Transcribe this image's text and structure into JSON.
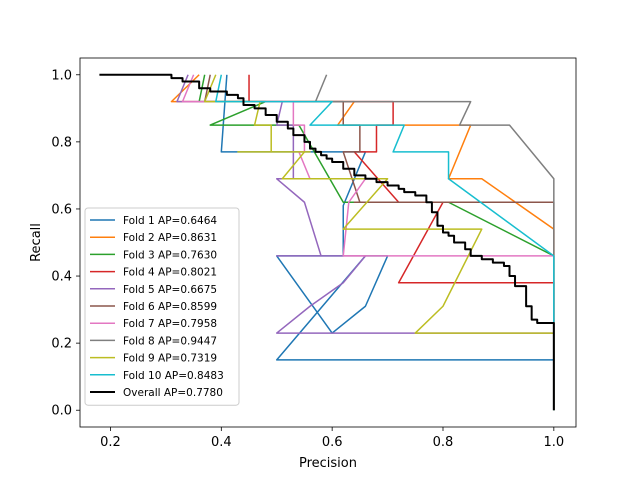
{
  "chart_data": {
    "type": "line",
    "title": "",
    "xlabel": "Precision",
    "ylabel": "Recall",
    "xlim": [
      0.145,
      1.04
    ],
    "ylim": [
      -0.05,
      1.05
    ],
    "xticks": [
      "0.2",
      "0.4",
      "0.6",
      "0.8",
      "1.0"
    ],
    "yticks": [
      "0.0",
      "0.2",
      "0.4",
      "0.6",
      "0.8",
      "1.0"
    ],
    "grid": false,
    "legend_position": "lower-left",
    "series": [
      {
        "name": "Fold 1 AP=0.6464",
        "color": "#1f77b4",
        "x": [
          0.41,
          0.4,
          0.43,
          0.41,
          0.66,
          0.62,
          0.62,
          0.5,
          0.6,
          0.66,
          0.7,
          0.66,
          0.5,
          1.0,
          1.0
        ],
        "y": [
          1.0,
          0.77,
          0.77,
          0.77,
          0.77,
          0.61,
          0.46,
          0.46,
          0.23,
          0.31,
          0.46,
          0.46,
          0.15,
          0.15,
          0.0
        ]
      },
      {
        "name": "Fold 2 AP=0.8631",
        "color": "#ff7f0e",
        "x": [
          0.36,
          0.31,
          0.64,
          0.61,
          0.61,
          0.77,
          0.85,
          0.81,
          0.81,
          0.87,
          1.0,
          1.0
        ],
        "y": [
          1.0,
          0.92,
          0.92,
          0.85,
          0.85,
          0.85,
          0.85,
          0.69,
          0.69,
          0.69,
          0.54,
          0.0
        ]
      },
      {
        "name": "Fold 3 AP=0.7630",
        "color": "#2ca02c",
        "x": [
          0.37,
          0.36,
          0.48,
          0.38,
          0.52,
          0.54,
          0.62,
          0.78,
          0.81,
          1.0,
          1.0
        ],
        "y": [
          1.0,
          0.92,
          0.92,
          0.85,
          0.85,
          0.85,
          0.62,
          0.62,
          0.62,
          0.46,
          0.0
        ]
      },
      {
        "name": "Fold 4 AP=0.8021",
        "color": "#d62728",
        "x": [
          0.45,
          0.45,
          0.71,
          0.71,
          0.68,
          0.68,
          0.64,
          0.72,
          0.8,
          0.72,
          1.0,
          1.0
        ],
        "y": [
          1.0,
          0.92,
          0.92,
          0.85,
          0.85,
          0.77,
          0.77,
          0.62,
          0.62,
          0.38,
          0.38,
          0.0
        ]
      },
      {
        "name": "Fold 5 AP=0.6675",
        "color": "#9467bd",
        "x": [
          0.34,
          0.32,
          0.51,
          0.5,
          0.53,
          0.53,
          0.5,
          0.55,
          0.58,
          0.5,
          0.66,
          0.62,
          0.56,
          0.5,
          0.75,
          1.0,
          1.0
        ],
        "y": [
          1.0,
          0.92,
          0.92,
          0.85,
          0.85,
          0.69,
          0.69,
          0.62,
          0.46,
          0.46,
          0.46,
          0.38,
          0.31,
          0.23,
          0.23,
          0.23,
          0.0
        ]
      },
      {
        "name": "Fold 6 AP=0.8599",
        "color": "#8c564b",
        "x": [
          0.38,
          0.37,
          0.62,
          0.62,
          0.65,
          0.65,
          0.62,
          0.65,
          0.64,
          1.0,
          1.0
        ],
        "y": [
          1.0,
          0.92,
          0.92,
          0.85,
          0.85,
          0.77,
          0.77,
          0.62,
          0.62,
          0.62,
          0.0
        ]
      },
      {
        "name": "Fold 7 AP=0.7958",
        "color": "#e377c2",
        "x": [
          0.35,
          0.33,
          0.53,
          0.53,
          0.55,
          0.55,
          0.54,
          0.56,
          0.6,
          0.63,
          0.66,
          0.63,
          0.62,
          1.0,
          1.0
        ],
        "y": [
          1.0,
          0.92,
          0.92,
          0.85,
          0.85,
          0.77,
          0.77,
          0.69,
          0.69,
          0.69,
          0.69,
          0.62,
          0.46,
          0.46,
          0.0
        ]
      },
      {
        "name": "Fold 8 AP=0.9447",
        "color": "#7f7f7f",
        "x": [
          0.59,
          0.57,
          0.85,
          0.83,
          0.92,
          1.0,
          1.0
        ],
        "y": [
          1.0,
          0.92,
          0.92,
          0.85,
          0.85,
          0.69,
          0.0
        ]
      },
      {
        "name": "Fold 9 AP=0.7319",
        "color": "#bcbd22",
        "x": [
          0.39,
          0.37,
          0.47,
          0.46,
          0.49,
          0.49,
          0.43,
          0.56,
          0.55,
          0.51,
          0.7,
          0.62,
          0.87,
          0.8,
          0.75,
          1.0,
          1.0
        ],
        "y": [
          1.0,
          0.92,
          0.92,
          0.85,
          0.85,
          0.77,
          0.77,
          0.77,
          0.77,
          0.69,
          0.69,
          0.54,
          0.54,
          0.31,
          0.23,
          0.23,
          0.0
        ]
      },
      {
        "name": "Fold 10 AP=0.8483",
        "color": "#17becf",
        "x": [
          0.4,
          0.39,
          0.6,
          0.56,
          0.57,
          0.73,
          0.71,
          0.81,
          0.81,
          1.0,
          1.0
        ],
        "y": [
          1.0,
          0.92,
          0.92,
          0.85,
          0.85,
          0.85,
          0.77,
          0.77,
          0.69,
          0.46,
          0.0
        ]
      },
      {
        "name": "Overall AP=0.7780",
        "color": "#000000",
        "width": 2,
        "x": [
          0.18,
          0.31,
          0.31,
          0.33,
          0.33,
          0.36,
          0.36,
          0.38,
          0.38,
          0.4,
          0.41,
          0.41,
          0.43,
          0.43,
          0.44,
          0.44,
          0.46,
          0.46,
          0.48,
          0.48,
          0.5,
          0.5,
          0.52,
          0.52,
          0.53,
          0.53,
          0.55,
          0.55,
          0.56,
          0.56,
          0.57,
          0.57,
          0.58,
          0.58,
          0.59,
          0.59,
          0.6,
          0.6,
          0.62,
          0.62,
          0.64,
          0.64,
          0.66,
          0.66,
          0.68,
          0.68,
          0.7,
          0.7,
          0.72,
          0.72,
          0.73,
          0.73,
          0.75,
          0.75,
          0.77,
          0.77,
          0.78,
          0.78,
          0.79,
          0.79,
          0.8,
          0.8,
          0.81,
          0.81,
          0.82,
          0.82,
          0.84,
          0.84,
          0.85,
          0.85,
          0.87,
          0.87,
          0.89,
          0.89,
          0.91,
          0.91,
          0.92,
          0.92,
          0.93,
          0.93,
          0.95,
          0.95,
          0.96,
          0.96,
          0.97,
          0.97,
          1.0,
          1.0
        ],
        "y": [
          1.0,
          1.0,
          0.99,
          0.99,
          0.98,
          0.98,
          0.96,
          0.96,
          0.95,
          0.95,
          0.95,
          0.94,
          0.94,
          0.93,
          0.93,
          0.91,
          0.91,
          0.9,
          0.9,
          0.88,
          0.88,
          0.86,
          0.86,
          0.84,
          0.84,
          0.82,
          0.82,
          0.8,
          0.8,
          0.78,
          0.78,
          0.77,
          0.77,
          0.76,
          0.76,
          0.75,
          0.75,
          0.74,
          0.74,
          0.72,
          0.72,
          0.7,
          0.7,
          0.69,
          0.69,
          0.68,
          0.68,
          0.67,
          0.67,
          0.66,
          0.66,
          0.65,
          0.65,
          0.64,
          0.64,
          0.62,
          0.62,
          0.59,
          0.59,
          0.55,
          0.55,
          0.53,
          0.53,
          0.52,
          0.52,
          0.5,
          0.5,
          0.48,
          0.48,
          0.46,
          0.46,
          0.45,
          0.45,
          0.44,
          0.44,
          0.43,
          0.43,
          0.4,
          0.4,
          0.37,
          0.37,
          0.31,
          0.31,
          0.27,
          0.27,
          0.26,
          0.26,
          0.0
        ]
      }
    ]
  }
}
